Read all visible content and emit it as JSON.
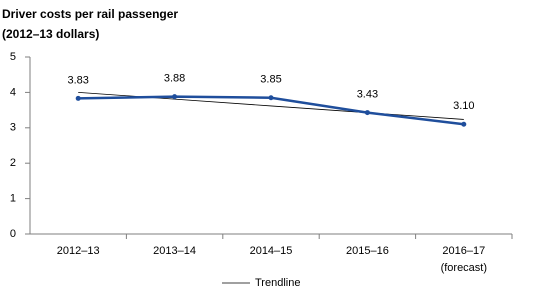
{
  "chart_data": {
    "type": "line",
    "title": "Driver costs per rail passenger",
    "subtitle": "(2012–13 dollars)",
    "categories": [
      "2012–13",
      "2013–14",
      "2014–15",
      "2015–16",
      "2016–17 (forecast)"
    ],
    "series": [
      {
        "color": "#1f4e9c",
        "values": [
          3.83,
          3.88,
          3.85,
          3.43,
          3.1
        ],
        "value_labels": [
          "3.83",
          "3.88",
          "3.85",
          "3.43",
          "3.10"
        ]
      },
      {
        "name": "Trendline",
        "color": "#000000",
        "values": [
          4.0,
          3.809,
          3.618,
          3.427,
          3.236
        ]
      }
    ],
    "ylim": [
      0,
      5
    ],
    "yticks": [
      0,
      1,
      2,
      3,
      4,
      5
    ],
    "grid": false,
    "legend": "bottom"
  }
}
